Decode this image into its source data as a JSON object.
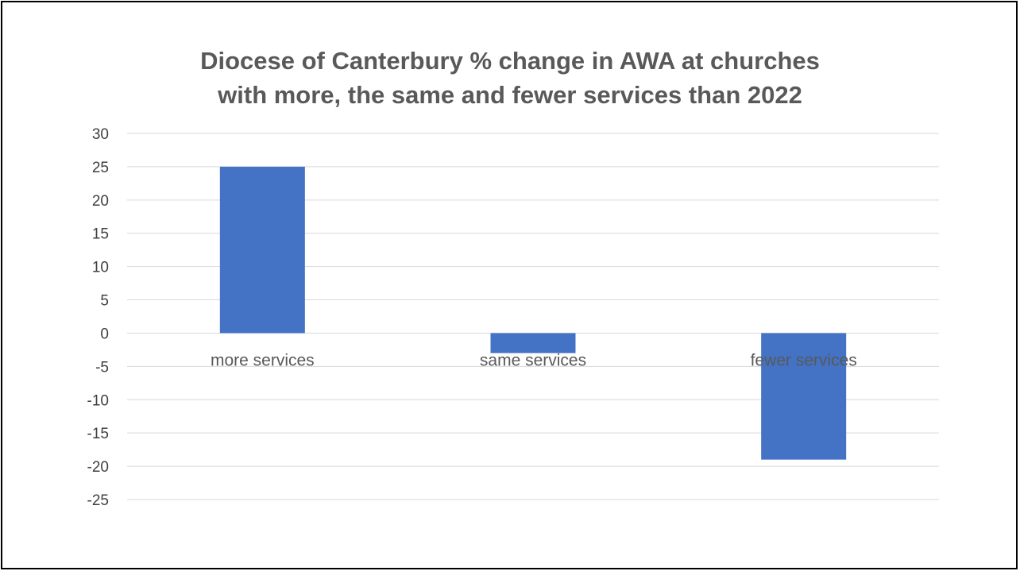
{
  "chart_data": {
    "type": "bar",
    "title_lines": [
      "Diocese of Canterbury % change in AWA at churches",
      "with more, the same and fewer services than 2022"
    ],
    "categories": [
      "more services",
      "same services",
      "fewer services"
    ],
    "series": [
      {
        "values": [
          25,
          -3,
          -19
        ]
      }
    ],
    "ylim": [
      -25,
      30
    ],
    "yticks": [
      30,
      25,
      20,
      15,
      10,
      5,
      0,
      -5,
      -10,
      -15,
      -20,
      -25
    ],
    "ytick_labels": [
      "30",
      "25",
      "20",
      "15",
      "10",
      "5",
      "0",
      "-5",
      "-10",
      "-15",
      "-20",
      "-25"
    ],
    "grid": true,
    "legend": "none",
    "xlabel": "",
    "ylabel": ""
  },
  "colors": {
    "bar": "#4472C4",
    "grid": "#D9D9D9",
    "title": "#595959"
  }
}
